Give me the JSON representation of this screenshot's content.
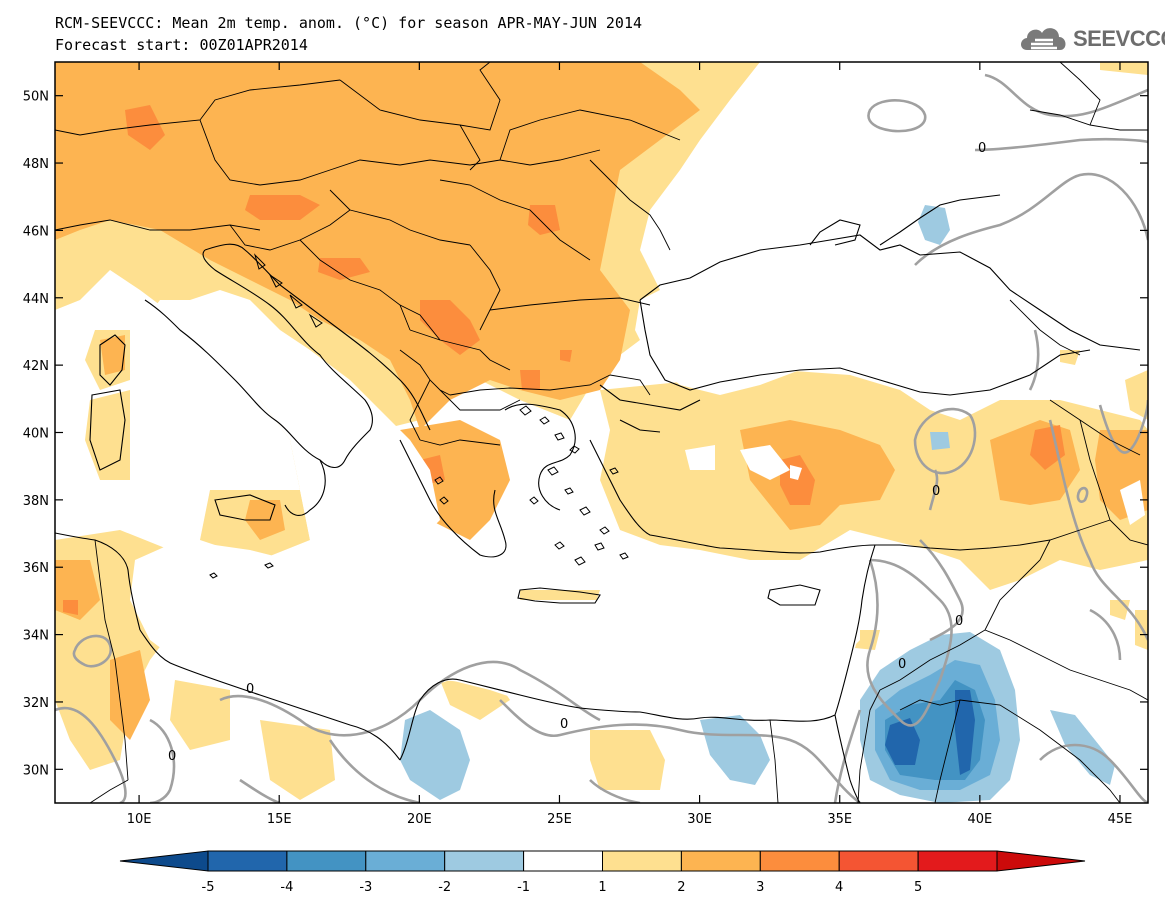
{
  "header": {
    "title_line1": "RCM-SEEVCCC: Mean 2m temp. anom. (°C) for season APR-MAY-JUN 2014",
    "title_line2": "Forecast start: 00Z01APR2014",
    "logo_text": "SEEVCCC",
    "logo_icon": "cloud-icon"
  },
  "map": {
    "lon_range": [
      7,
      46
    ],
    "lat_range": [
      29,
      51
    ],
    "lat_ticks": [
      "50N",
      "48N",
      "46N",
      "44N",
      "42N",
      "40N",
      "38N",
      "36N",
      "34N",
      "32N",
      "30N"
    ],
    "lon_ticks": [
      "10E",
      "15E",
      "20E",
      "25E",
      "30E",
      "35E",
      "40E",
      "45E"
    ],
    "contour_label": "0"
  },
  "colorbar": {
    "labels": [
      "-5",
      "-4",
      "-3",
      "-2",
      "-1",
      "1",
      "2",
      "3",
      "4",
      "5"
    ],
    "colors": [
      "#0d4a8c",
      "#2166ac",
      "#4393c3",
      "#6aaed6",
      "#9ecae1",
      "#ffffff",
      "#fee090",
      "#fdb451",
      "#fc8d3d",
      "#f45533",
      "#e31a1c",
      "#cc0a0a"
    ]
  }
}
